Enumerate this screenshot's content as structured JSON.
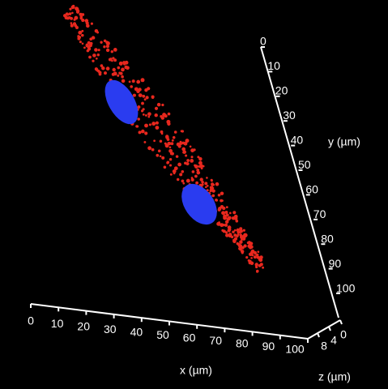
{
  "axes": {
    "x": {
      "label": "x (µm)",
      "ticks": [
        "0",
        "10",
        "20",
        "30",
        "40",
        "50",
        "60",
        "70",
        "80",
        "90",
        "100"
      ]
    },
    "y": {
      "label": "y (µm)",
      "ticks": [
        "0",
        "10",
        "20",
        "30",
        "40",
        "50",
        "60",
        "70",
        "80",
        "90",
        "100"
      ]
    },
    "z": {
      "label": "z (µm)",
      "ticks": [
        "8",
        "4",
        "0"
      ]
    }
  }
}
